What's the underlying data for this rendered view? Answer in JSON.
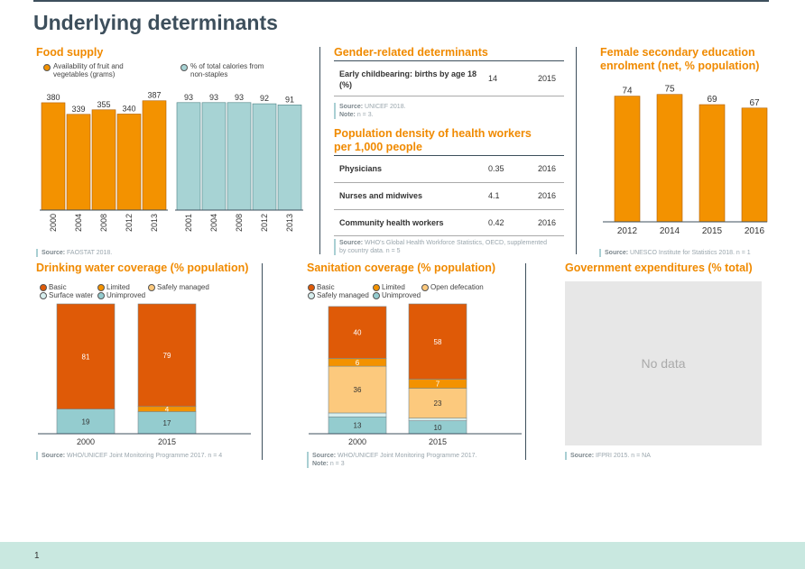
{
  "page": {
    "title": "Underlying determinants",
    "page_number": "1"
  },
  "food_supply": {
    "title": "Food supply",
    "legend_fruit": "Availability of fruit and vegetables (grams)",
    "legend_calories": "% of total calories from non-staples",
    "source_label": "Source:",
    "source_text": "FAOSTAT 2018.",
    "colors": {
      "fruit": "#f39200",
      "calories": "#a7d3d4"
    }
  },
  "gender": {
    "title": "Gender-related determinants",
    "rows": [
      {
        "label": "Early childbearing: births by age 18 (%)",
        "value": "14",
        "year": "2015"
      }
    ],
    "source_label": "Source:",
    "source_text": "UNICEF 2018.",
    "note_label": "Note:",
    "note_text": "n = 3."
  },
  "health_workers": {
    "title": "Population density of health workers per 1,000 people",
    "rows": [
      {
        "label": "Physicians",
        "value": "0.35",
        "year": "2016"
      },
      {
        "label": "Nurses and midwives",
        "value": "4.1",
        "year": "2016"
      },
      {
        "label": "Community health workers",
        "value": "0.42",
        "year": "2016"
      }
    ],
    "source_label": "Source:",
    "source_text": "WHO's Global Health Workforce Statistics, OECD, supplemented by country data. n = 5"
  },
  "female_edu": {
    "title": "Female secondary education enrolment (net, % population)",
    "source_label": "Source:",
    "source_text": "UNESCO Institute for Statistics 2018. n = 1"
  },
  "water": {
    "title": "Drinking water coverage (% population)",
    "legend": [
      "Basic",
      "Limited",
      "Safely managed",
      "Surface water",
      "Unimproved"
    ],
    "source_label": "Source:",
    "source_text": "WHO/UNICEF Joint Monitoring Programme 2017. n = 4"
  },
  "sanitation": {
    "title": "Sanitation coverage (% population)",
    "legend": [
      "Basic",
      "Limited",
      "Open defecation",
      "Safely managed",
      "Unimproved"
    ],
    "source_label": "Source:",
    "source_text": "WHO/UNICEF Joint Monitoring Programme 2017.",
    "note_label": "Note:",
    "note_text": "n = 3"
  },
  "gov_exp": {
    "title": "Government expenditures (% total)",
    "nodata": "No data",
    "source_label": "Source:",
    "source_text": "IFPRI 2015. n = NA"
  },
  "chart_data": [
    {
      "id": "fruit",
      "type": "bar",
      "categories": [
        "2000",
        "2004",
        "2008",
        "2012",
        "2013"
      ],
      "values": [
        380,
        339,
        355,
        340,
        387
      ],
      "ylim": [
        0,
        450
      ],
      "color": "#f39200"
    },
    {
      "id": "calories",
      "type": "bar",
      "categories": [
        "2001",
        "2004",
        "2008",
        "2012",
        "2013"
      ],
      "values": [
        93,
        93,
        93,
        92,
        91
      ],
      "ylim": [
        0,
        110
      ],
      "color": "#a7d3d4"
    },
    {
      "id": "edu",
      "type": "bar",
      "categories": [
        "2012",
        "2014",
        "2015",
        "2016"
      ],
      "values": [
        74,
        75,
        69,
        67
      ],
      "ylim": [
        0,
        86
      ],
      "color": "#f39200"
    },
    {
      "id": "water",
      "type": "bar",
      "stacked": true,
      "categories": [
        "2000",
        "2015"
      ],
      "series": [
        {
          "name": "Unimproved",
          "values": [
            19,
            17
          ],
          "color": "#94cccf"
        },
        {
          "name": "Surface water",
          "values": [
            0,
            0
          ],
          "color": "#d7eeee"
        },
        {
          "name": "Safely managed",
          "values": [
            0,
            0
          ],
          "color": "#fcc97d"
        },
        {
          "name": "Limited",
          "values": [
            0,
            4
          ],
          "color": "#f39200"
        },
        {
          "name": "Basic",
          "values": [
            81,
            79
          ],
          "color": "#df5a07"
        }
      ],
      "labels": [
        [
          "19",
          "",
          "",
          "",
          "81"
        ],
        [
          "17",
          "",
          "",
          "4",
          "79"
        ]
      ],
      "ylim": [
        0,
        100
      ]
    },
    {
      "id": "sanitation",
      "type": "bar",
      "stacked": true,
      "categories": [
        "2000",
        "2015"
      ],
      "series": [
        {
          "name": "Unimproved",
          "values": [
            13,
            10
          ],
          "color": "#94cccf"
        },
        {
          "name": "Safely managed",
          "values": [
            3,
            2
          ],
          "color": "#d7eeee"
        },
        {
          "name": "Open defecation",
          "values": [
            36,
            23
          ],
          "color": "#fcc97d"
        },
        {
          "name": "Limited",
          "values": [
            6,
            7
          ],
          "color": "#f39200"
        },
        {
          "name": "Basic",
          "values": [
            40,
            58
          ],
          "color": "#df5a07"
        }
      ],
      "labels": [
        [
          "13",
          "",
          "36",
          "6",
          "40"
        ],
        [
          "10",
          "",
          "23",
          "7",
          "58"
        ]
      ],
      "ylim": [
        0,
        100
      ]
    }
  ]
}
